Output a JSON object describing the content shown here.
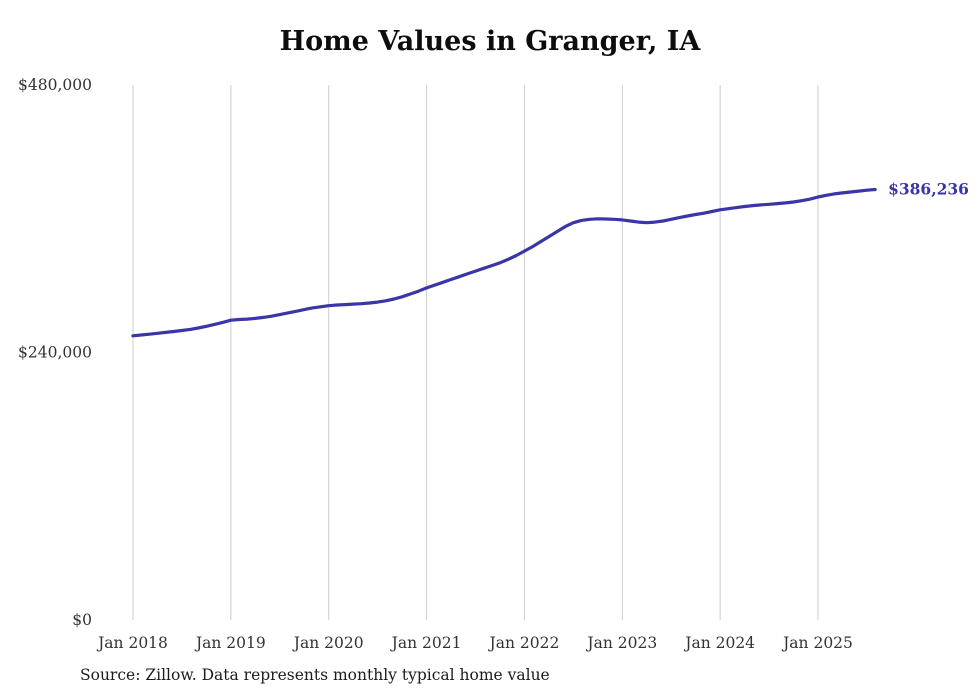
{
  "chart": {
    "title": "Home Values in Granger, IA",
    "source_note": "Source: Zillow. Data represents monthly typical home value",
    "end_label": "$386,236",
    "line_color": "#3a36a8",
    "gridline_color": "#cccccc",
    "tick_label_color": "#333333"
  },
  "chart_data": {
    "type": "line",
    "title": "Home Values in Granger, IA",
    "xlabel": "",
    "ylabel": "",
    "ylim": [
      0,
      480000
    ],
    "grid": "vertical-only",
    "legend": "none",
    "y_ticks": [
      {
        "value": 0,
        "label": "$0"
      },
      {
        "value": 240000,
        "label": "$240,000"
      },
      {
        "value": 480000,
        "label": "$480,000"
      }
    ],
    "x_ticks": [
      "Jan 2018",
      "Jan 2019",
      "Jan 2020",
      "Jan 2021",
      "Jan 2022",
      "Jan 2023",
      "Jan 2024",
      "Jan 2025"
    ],
    "end_annotation": "$386,236",
    "series": [
      {
        "name": "Monthly typical home value",
        "color": "#3a36a8",
        "points": [
          [
            "2018-01",
            255000
          ],
          [
            "2018-02",
            255700
          ],
          [
            "2018-03",
            256400
          ],
          [
            "2018-04",
            257200
          ],
          [
            "2018-05",
            258000
          ],
          [
            "2018-06",
            258800
          ],
          [
            "2018-07",
            259700
          ],
          [
            "2018-08",
            260700
          ],
          [
            "2018-09",
            262000
          ],
          [
            "2018-10",
            263500
          ],
          [
            "2018-11",
            265200
          ],
          [
            "2018-12",
            267000
          ],
          [
            "2019-01",
            269000
          ],
          [
            "2019-02",
            269600
          ],
          [
            "2019-03",
            270000
          ],
          [
            "2019-04",
            270600
          ],
          [
            "2019-05",
            271500
          ],
          [
            "2019-06",
            272600
          ],
          [
            "2019-07",
            274000
          ],
          [
            "2019-08",
            275500
          ],
          [
            "2019-09",
            277000
          ],
          [
            "2019-10",
            278500
          ],
          [
            "2019-11",
            280000
          ],
          [
            "2019-12",
            281000
          ],
          [
            "2020-01",
            282000
          ],
          [
            "2020-02",
            282600
          ],
          [
            "2020-03",
            283000
          ],
          [
            "2020-04",
            283400
          ],
          [
            "2020-05",
            283800
          ],
          [
            "2020-06",
            284400
          ],
          [
            "2020-07",
            285200
          ],
          [
            "2020-08",
            286400
          ],
          [
            "2020-09",
            288000
          ],
          [
            "2020-10",
            290000
          ],
          [
            "2020-11",
            292500
          ],
          [
            "2020-12",
            295000
          ],
          [
            "2021-01",
            298000
          ],
          [
            "2021-02",
            300500
          ],
          [
            "2021-03",
            303000
          ],
          [
            "2021-04",
            305500
          ],
          [
            "2021-05",
            308000
          ],
          [
            "2021-06",
            310500
          ],
          [
            "2021-07",
            313000
          ],
          [
            "2021-08",
            315500
          ],
          [
            "2021-09",
            318000
          ],
          [
            "2021-10",
            320500
          ],
          [
            "2021-11",
            323500
          ],
          [
            "2021-12",
            327000
          ],
          [
            "2022-01",
            331000
          ],
          [
            "2022-02",
            335000
          ],
          [
            "2022-03",
            339500
          ],
          [
            "2022-04",
            344000
          ],
          [
            "2022-05",
            348500
          ],
          [
            "2022-06",
            353000
          ],
          [
            "2022-07",
            356500
          ],
          [
            "2022-08",
            358500
          ],
          [
            "2022-09",
            359500
          ],
          [
            "2022-10",
            360000
          ],
          [
            "2022-11",
            359800
          ],
          [
            "2022-12",
            359500
          ],
          [
            "2023-01",
            359000
          ],
          [
            "2023-02",
            358000
          ],
          [
            "2023-03",
            357000
          ],
          [
            "2023-04",
            356500
          ],
          [
            "2023-05",
            357000
          ],
          [
            "2023-06",
            358000
          ],
          [
            "2023-07",
            359500
          ],
          [
            "2023-08",
            361000
          ],
          [
            "2023-09",
            362500
          ],
          [
            "2023-10",
            363800
          ],
          [
            "2023-11",
            365000
          ],
          [
            "2023-12",
            366500
          ],
          [
            "2024-01",
            368000
          ],
          [
            "2024-02",
            369000
          ],
          [
            "2024-03",
            370000
          ],
          [
            "2024-04",
            371000
          ],
          [
            "2024-05",
            371800
          ],
          [
            "2024-06",
            372400
          ],
          [
            "2024-07",
            373000
          ],
          [
            "2024-08",
            373600
          ],
          [
            "2024-09",
            374200
          ],
          [
            "2024-10",
            375000
          ],
          [
            "2024-11",
            376200
          ],
          [
            "2024-12",
            377500
          ],
          [
            "2025-01",
            379500
          ],
          [
            "2025-02",
            381000
          ],
          [
            "2025-03",
            382300
          ],
          [
            "2025-04",
            383200
          ],
          [
            "2025-05",
            384000
          ],
          [
            "2025-06",
            384800
          ],
          [
            "2025-07",
            385600
          ],
          [
            "2025-08",
            386236
          ]
        ]
      }
    ]
  }
}
